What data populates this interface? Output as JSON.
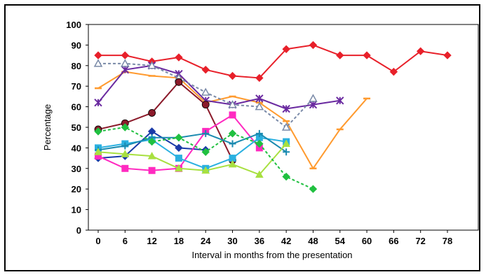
{
  "chart_data": {
    "type": "line",
    "title": "",
    "xlabel": "Interval in months from the presentation",
    "ylabel": "Percentage",
    "xlim": [
      0,
      78
    ],
    "ylim": [
      0,
      100
    ],
    "x_ticks": [
      0,
      6,
      12,
      18,
      24,
      30,
      36,
      42,
      48,
      54,
      60,
      66,
      72,
      78
    ],
    "y_ticks": [
      0,
      10,
      20,
      30,
      40,
      50,
      60,
      70,
      80,
      90,
      100
    ],
    "grid": false,
    "legend": "none",
    "series": [
      {
        "color": "#e8202a",
        "marker": "diamond",
        "dash": false,
        "x": [
          0,
          6,
          12,
          18,
          24,
          30,
          36,
          42,
          48,
          54,
          60,
          66,
          72,
          78
        ],
        "y": [
          85,
          85,
          82,
          84,
          78,
          75,
          74,
          88,
          90,
          85,
          85,
          77,
          87,
          85
        ]
      },
      {
        "color": "#ff9a2e",
        "marker": "dash",
        "dash": false,
        "x": [
          0,
          6,
          12,
          18,
          24,
          30,
          36,
          42,
          48,
          54,
          60
        ],
        "y": [
          69,
          77,
          75,
          74,
          62,
          65,
          62,
          53,
          30,
          49,
          64
        ]
      },
      {
        "color": "#6a2aa0",
        "marker": "star",
        "dash": false,
        "x": [
          0,
          6,
          12,
          18,
          24,
          30,
          36,
          42,
          48,
          54
        ],
        "y": [
          62,
          78,
          80,
          76,
          63,
          61,
          64,
          59,
          61,
          63
        ]
      },
      {
        "color": "#7a8aa8",
        "marker": "triangle-open",
        "dash": true,
        "x": [
          0,
          6,
          12,
          18,
          24,
          30,
          36,
          42,
          48
        ],
        "y": [
          81,
          81,
          80,
          74,
          67,
          61,
          60,
          50,
          64
        ]
      },
      {
        "color": "#8b1a2a",
        "marker": "circle",
        "dash": false,
        "x": [
          0,
          6,
          12,
          18,
          24,
          30
        ],
        "y": [
          49,
          52,
          57,
          72,
          61,
          34
        ]
      },
      {
        "color": "#1a3aa8",
        "marker": "diamond",
        "dash": false,
        "x": [
          0,
          6,
          12,
          18,
          24
        ],
        "y": [
          35,
          36,
          48,
          40,
          39
        ]
      },
      {
        "color": "#ff2ac0",
        "marker": "square",
        "dash": false,
        "x": [
          0,
          6,
          12,
          18,
          24,
          30,
          36
        ],
        "y": [
          36,
          30,
          29,
          30,
          48,
          56,
          40
        ]
      },
      {
        "color": "#2ab0e0",
        "marker": "square",
        "dash": false,
        "x": [
          0,
          6,
          12,
          18,
          24,
          30,
          36,
          42
        ],
        "y": [
          40,
          42,
          44,
          35,
          30,
          35,
          45,
          43
        ]
      },
      {
        "color": "#1a8ab0",
        "marker": "plus",
        "dash": false,
        "x": [
          0,
          6,
          12,
          18,
          24,
          30,
          36,
          42
        ],
        "y": [
          39,
          41,
          45,
          45,
          47,
          42,
          47,
          38
        ]
      },
      {
        "color": "#a8e040",
        "marker": "triangle",
        "dash": false,
        "x": [
          0,
          6,
          12,
          18,
          24,
          30,
          36,
          42
        ],
        "y": [
          38,
          37,
          36,
          30,
          29,
          32,
          27,
          42
        ]
      },
      {
        "color": "#20c040",
        "marker": "diamond",
        "dash": true,
        "x": [
          0,
          6,
          12,
          18,
          24,
          30,
          36,
          42,
          48
        ],
        "y": [
          48,
          50,
          43,
          45,
          38,
          47,
          42,
          26,
          20
        ]
      }
    ]
  }
}
